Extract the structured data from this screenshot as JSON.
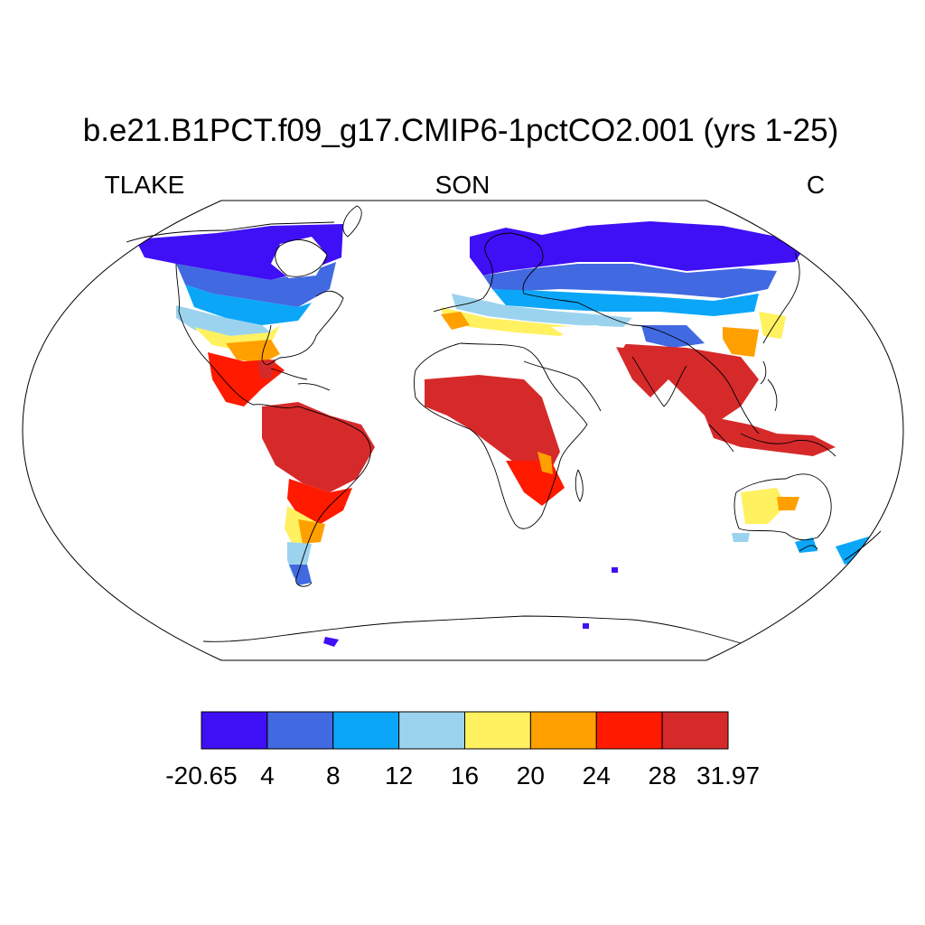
{
  "title": "b.e21.B1PCT.f09_g17.CMIP6-1pctCO2.001 (yrs 1-25)",
  "left_label": "TLAKE",
  "center_label": "SON",
  "right_label": "C",
  "colorbar": {
    "ticks": [
      "-20.65",
      "4",
      "8",
      "12",
      "16",
      "20",
      "24",
      "28",
      "31.97"
    ],
    "colors": [
      "#3f0ff5",
      "#4169e1",
      "#0ba6f8",
      "#9bd3ef",
      "#fff160",
      "#ffa000",
      "#ff1a00",
      "#d62a2a"
    ]
  },
  "map": {
    "projection": "robinson",
    "coastline_color": "#000000",
    "ocean_color": "#ffffff"
  }
}
